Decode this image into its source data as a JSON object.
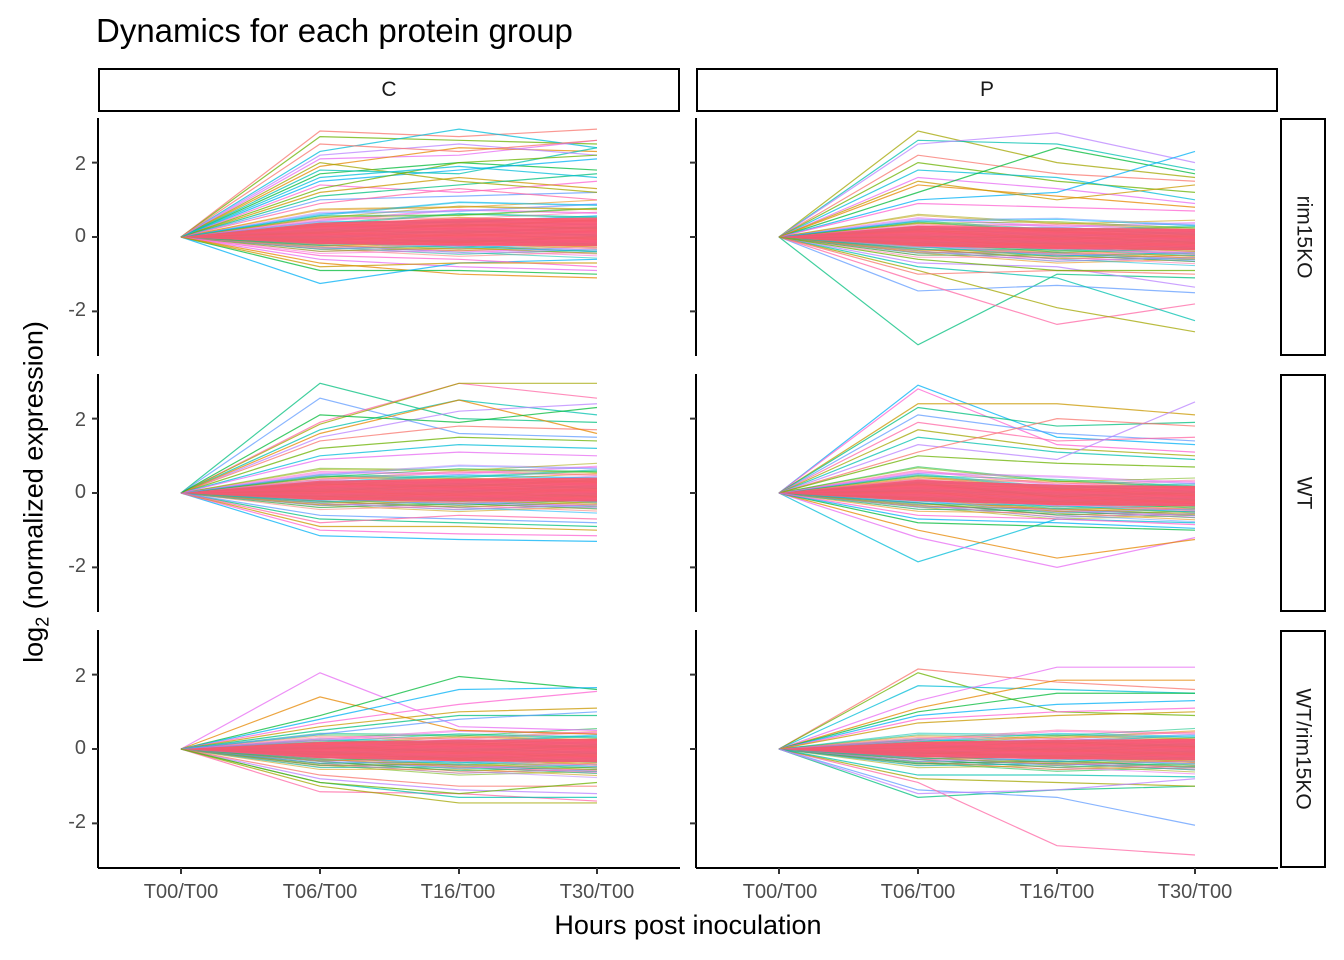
{
  "chart_data": {
    "type": "line",
    "title": "Dynamics for each protein group",
    "xlabel": "Hours post inoculation",
    "ylabel": {
      "prefix": "log",
      "sub": "2",
      "suffix": " (normalized expression)"
    },
    "x": [
      "T00/T00",
      "T06/T00",
      "T16/T00",
      "T30/T00"
    ],
    "yticks": [
      "2",
      "0",
      "-2"
    ],
    "ytick_values": [
      2,
      0,
      -2
    ],
    "ylim": [
      -3.2,
      3.2
    ],
    "facet_cols": [
      "C",
      "P"
    ],
    "facet_rows": [
      "rim15KO",
      "WT",
      "WT/rim15KO"
    ],
    "grid": false,
    "legend": "none",
    "palette": [
      "#F8766D",
      "#E58700",
      "#C99800",
      "#A3A500",
      "#6BB100",
      "#00BA38",
      "#00BF7D",
      "#00C0AF",
      "#00BCD8",
      "#00B0F6",
      "#619CFF",
      "#B983FF",
      "#E76BF3",
      "#FD61D1",
      "#FF67A4"
    ],
    "core_color": "#F8566F",
    "panels": [
      {
        "col": "C",
        "row": "rim15KO",
        "band": {
          "upper": [
            0,
            0.7,
            0.9,
            0.95
          ],
          "lower": [
            0,
            -0.35,
            -0.42,
            -0.45
          ]
        },
        "series": [
          {
            "values": [
              0,
              2.85,
              2.7,
              2.9
            ]
          },
          {
            "values": [
              0,
              2.7,
              2.6,
              2.5
            ]
          },
          {
            "values": [
              0,
              2.3,
              2.9,
              2.4
            ]
          },
          {
            "values": [
              0,
              2.1,
              2.2,
              2.6
            ]
          },
          {
            "values": [
              0,
              1.9,
              2.4,
              2.3
            ]
          },
          {
            "values": [
              0,
              1.7,
              2.0,
              1.8
            ]
          },
          {
            "values": [
              0,
              1.5,
              1.8,
              2.1
            ]
          },
          {
            "values": [
              0,
              1.4,
              1.2,
              1.5
            ]
          },
          {
            "values": [
              0,
              1.2,
              1.6,
              1.3
            ]
          },
          {
            "values": [
              0,
              1.1,
              1.4,
              1.7
            ]
          },
          {
            "values": [
              0,
              1.0,
              1.1,
              1.2
            ]
          },
          {
            "values": [
              0,
              0.9,
              1.3,
              1.0
            ]
          },
          {
            "values": [
              0,
              2.0,
              1.5,
              1.2
            ]
          },
          {
            "values": [
              0,
              1.8,
              1.7,
              2.4
            ]
          },
          {
            "values": [
              0,
              2.2,
              2.5,
              2.2
            ]
          },
          {
            "values": [
              0,
              2.5,
              2.3,
              2.6
            ]
          },
          {
            "values": [
              0,
              1.3,
              2.0,
              2.2
            ]
          },
          {
            "values": [
              0,
              1.6,
              1.9,
              1.6
            ]
          },
          {
            "values": [
              0,
              -0.6,
              -0.8,
              -0.9
            ]
          },
          {
            "values": [
              0,
              -0.7,
              -1.0,
              -1.1
            ]
          },
          {
            "values": [
              0,
              -0.9,
              -0.9,
              -1.0
            ]
          },
          {
            "values": [
              0,
              -1.25,
              -0.7,
              -0.6
            ]
          },
          {
            "values": [
              0,
              -0.5,
              -0.6,
              -0.8
            ]
          },
          {
            "values": [
              0,
              -0.8,
              -0.7,
              -0.7
            ]
          }
        ]
      },
      {
        "col": "P",
        "row": "rim15KO",
        "band": {
          "upper": [
            0,
            0.55,
            0.45,
            0.4
          ],
          "lower": [
            0,
            -0.45,
            -0.6,
            -0.65
          ]
        },
        "series": [
          {
            "values": [
              0,
              2.85,
              2.0,
              1.6
            ]
          },
          {
            "values": [
              0,
              2.6,
              2.5,
              1.8
            ]
          },
          {
            "values": [
              0,
              2.5,
              2.8,
              2.0
            ]
          },
          {
            "values": [
              0,
              2.2,
              1.7,
              1.5
            ]
          },
          {
            "values": [
              0,
              2.0,
              1.5,
              1.2
            ]
          },
          {
            "values": [
              0,
              1.8,
              1.6,
              1.0
            ]
          },
          {
            "values": [
              0,
              1.6,
              1.3,
              0.9
            ]
          },
          {
            "values": [
              0,
              1.4,
              1.1,
              0.8
            ]
          },
          {
            "values": [
              0,
              1.2,
              2.4,
              1.7
            ]
          },
          {
            "values": [
              0,
              1.0,
              1.2,
              2.3
            ]
          },
          {
            "values": [
              0,
              0.9,
              0.8,
              0.7
            ]
          },
          {
            "values": [
              0,
              1.5,
              1.0,
              1.4
            ]
          },
          {
            "values": [
              0,
              -2.9,
              -1.0,
              -1.1
            ]
          },
          {
            "values": [
              0,
              -1.45,
              -1.3,
              -1.5
            ]
          },
          {
            "values": [
              0,
              -1.2,
              -2.35,
              -1.8
            ]
          },
          {
            "values": [
              0,
              -0.9,
              -1.9,
              -2.55
            ]
          },
          {
            "values": [
              0,
              -0.8,
              -1.1,
              -2.25
            ]
          },
          {
            "values": [
              0,
              -0.7,
              -0.8,
              -1.35
            ]
          },
          {
            "values": [
              0,
              -1.0,
              -0.9,
              -1.0
            ]
          },
          {
            "values": [
              0,
              -0.6,
              -0.9,
              -0.9
            ]
          }
        ]
      },
      {
        "col": "C",
        "row": "WT",
        "band": {
          "upper": [
            0,
            0.6,
            0.7,
            0.75
          ],
          "lower": [
            0,
            -0.35,
            -0.4,
            -0.42
          ]
        },
        "series": [
          {
            "values": [
              0,
              2.95,
              2.0,
              1.9
            ]
          },
          {
            "values": [
              0,
              2.55,
              1.6,
              1.5
            ]
          },
          {
            "values": [
              0,
              1.9,
              2.95,
              2.55
            ]
          },
          {
            "values": [
              0,
              1.85,
              2.95,
              2.95
            ]
          },
          {
            "values": [
              0,
              1.7,
              2.5,
              2.1
            ]
          },
          {
            "values": [
              0,
              1.5,
              2.2,
              2.4
            ]
          },
          {
            "values": [
              0,
              1.4,
              1.8,
              1.7
            ]
          },
          {
            "values": [
              0,
              1.2,
              1.5,
              1.4
            ]
          },
          {
            "values": [
              0,
              1.0,
              1.3,
              1.2
            ]
          },
          {
            "values": [
              0,
              0.9,
              1.1,
              1.0
            ]
          },
          {
            "values": [
              0,
              1.6,
              2.5,
              1.6
            ]
          },
          {
            "values": [
              0,
              2.1,
              1.9,
              2.3
            ]
          },
          {
            "values": [
              0,
              -1.15,
              -1.25,
              -1.3
            ]
          },
          {
            "values": [
              0,
              -1.0,
              -1.1,
              -1.15
            ]
          },
          {
            "values": [
              0,
              -0.9,
              -0.9,
              -1.0
            ]
          },
          {
            "values": [
              0,
              -0.7,
              -0.8,
              -0.9
            ]
          },
          {
            "values": [
              0,
              -0.6,
              -0.7,
              -0.8
            ]
          },
          {
            "values": [
              0,
              -0.8,
              -0.6,
              -0.7
            ]
          }
        ]
      },
      {
        "col": "P",
        "row": "WT",
        "band": {
          "upper": [
            0,
            0.65,
            0.4,
            0.35
          ],
          "lower": [
            0,
            -0.4,
            -0.6,
            -0.65
          ]
        },
        "series": [
          {
            "values": [
              0,
              2.9,
              1.5,
              1.3
            ]
          },
          {
            "values": [
              0,
              2.8,
              1.3,
              1.1
            ]
          },
          {
            "values": [
              0,
              2.4,
              2.4,
              2.1
            ]
          },
          {
            "values": [
              0,
              2.3,
              1.8,
              1.9
            ]
          },
          {
            "values": [
              0,
              2.1,
              1.6,
              1.4
            ]
          },
          {
            "values": [
              0,
              1.9,
              1.4,
              1.5
            ]
          },
          {
            "values": [
              0,
              1.7,
              1.2,
              1.0
            ]
          },
          {
            "values": [
              0,
              1.5,
              1.1,
              0.9
            ]
          },
          {
            "values": [
              0,
              1.3,
              0.9,
              2.45
            ]
          },
          {
            "values": [
              0,
              1.1,
              2.0,
              1.8
            ]
          },
          {
            "values": [
              0,
              1.0,
              0.8,
              0.7
            ]
          },
          {
            "values": [
              0,
              -1.85,
              -0.7,
              -0.8
            ]
          },
          {
            "values": [
              0,
              -1.2,
              -2.0,
              -1.2
            ]
          },
          {
            "values": [
              0,
              -1.0,
              -1.75,
              -1.25
            ]
          },
          {
            "values": [
              0,
              -0.8,
              -0.9,
              -1.0
            ]
          },
          {
            "values": [
              0,
              -0.7,
              -0.8,
              -0.95
            ]
          },
          {
            "values": [
              0,
              -0.6,
              -0.7,
              -0.85
            ]
          }
        ]
      },
      {
        "col": "C",
        "row": "WT/rim15KO",
        "band": {
          "upper": [
            0,
            0.35,
            0.45,
            0.5
          ],
          "lower": [
            0,
            -0.45,
            -0.6,
            -0.65
          ]
        },
        "series": [
          {
            "values": [
              0,
              2.05,
              0.6,
              0.5
            ]
          },
          {
            "values": [
              0,
              1.4,
              0.5,
              0.4
            ]
          },
          {
            "values": [
              0,
              0.9,
              1.95,
              1.6
            ]
          },
          {
            "values": [
              0,
              0.8,
              1.6,
              1.65
            ]
          },
          {
            "values": [
              0,
              0.7,
              1.2,
              1.55
            ]
          },
          {
            "values": [
              0,
              0.6,
              1.0,
              1.1
            ]
          },
          {
            "values": [
              0,
              0.5,
              0.9,
              0.9
            ]
          },
          {
            "values": [
              0,
              0.4,
              0.8,
              1.0
            ]
          },
          {
            "values": [
              0,
              -1.15,
              -1.2,
              -1.4
            ]
          },
          {
            "values": [
              0,
              -1.0,
              -1.45,
              -1.45
            ]
          },
          {
            "values": [
              0,
              -0.9,
              -1.3,
              -1.3
            ]
          },
          {
            "values": [
              0,
              -0.8,
              -1.1,
              -1.2
            ]
          },
          {
            "values": [
              0,
              -0.7,
              -1.0,
              -1.0
            ]
          },
          {
            "values": [
              0,
              -0.9,
              -1.2,
              -0.9
            ]
          }
        ]
      },
      {
        "col": "P",
        "row": "WT/rim15KO",
        "band": {
          "upper": [
            0,
            0.35,
            0.45,
            0.5
          ],
          "lower": [
            0,
            -0.4,
            -0.5,
            -0.55
          ]
        },
        "series": [
          {
            "values": [
              0,
              2.15,
              1.8,
              1.6
            ]
          },
          {
            "values": [
              0,
              2.05,
              1.0,
              0.9
            ]
          },
          {
            "values": [
              0,
              1.7,
              1.6,
              1.5
            ]
          },
          {
            "values": [
              0,
              1.3,
              2.2,
              2.2
            ]
          },
          {
            "values": [
              0,
              1.1,
              1.85,
              1.85
            ]
          },
          {
            "values": [
              0,
              1.0,
              1.5,
              1.5
            ]
          },
          {
            "values": [
              0,
              0.9,
              1.2,
              1.3
            ]
          },
          {
            "values": [
              0,
              0.8,
              1.0,
              1.1
            ]
          },
          {
            "values": [
              0,
              0.7,
              0.9,
              1.0
            ]
          },
          {
            "values": [
              0,
              -1.3,
              -1.1,
              -1.0
            ]
          },
          {
            "values": [
              0,
              -1.1,
              -1.3,
              -2.05
            ]
          },
          {
            "values": [
              0,
              -0.9,
              -2.6,
              -2.85
            ]
          },
          {
            "values": [
              0,
              -0.8,
              -0.9,
              -1.0
            ]
          },
          {
            "values": [
              0,
              -0.7,
              -0.7,
              -0.75
            ]
          },
          {
            "values": [
              0,
              -1.2,
              -1.1,
              -0.8
            ]
          }
        ]
      }
    ]
  }
}
